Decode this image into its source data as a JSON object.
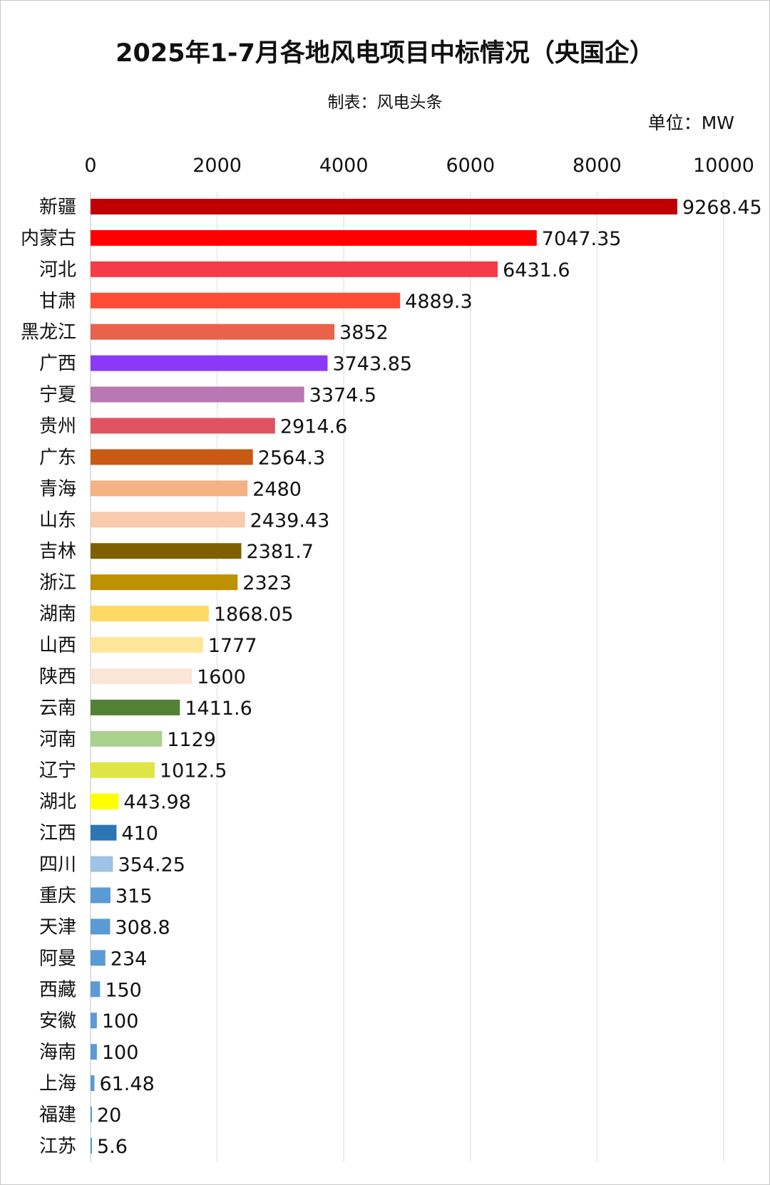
{
  "chart_data": {
    "type": "bar",
    "orientation": "horizontal",
    "title": "2025年1-7月各地风电项目中标情况（央国企）",
    "subtitle": "制表：风电头条",
    "unit": "单位：MW",
    "xlim": [
      0,
      10000
    ],
    "xticks": [
      "0",
      "2000",
      "4000",
      "6000",
      "8000",
      "10000"
    ],
    "xtick_values": [
      0,
      2000,
      4000,
      6000,
      8000,
      10000
    ],
    "xaxis_position": "top",
    "grid": true,
    "categories": [
      "新疆",
      "内蒙古",
      "河北",
      "甘肃",
      "黑龙江",
      "广西",
      "宁夏",
      "贵州",
      "广东",
      "青海",
      "山东",
      "吉林",
      "浙江",
      "湖南",
      "山西",
      "陕西",
      "云南",
      "河南",
      "辽宁",
      "湖北",
      "江西",
      "四川",
      "重庆",
      "天津",
      "阿曼",
      "西藏",
      "安徽",
      "海南",
      "上海",
      "福建",
      "江苏"
    ],
    "values": [
      9268.45,
      7047.35,
      6431.6,
      4889.3,
      3852,
      3743.85,
      3374.5,
      2914.6,
      2564.3,
      2480,
      2439.43,
      2381.7,
      2323,
      1868.05,
      1777,
      1600,
      1411.6,
      1129,
      1012.5,
      443.98,
      410,
      354.25,
      315,
      308.8,
      234,
      150,
      100,
      100,
      61.48,
      20,
      5.6
    ],
    "labels": [
      "9268.45",
      "7047.35",
      "6431.6",
      "4889.3",
      "3852",
      "3743.85",
      "3374.5",
      "2914.6",
      "2564.3",
      "2480",
      "2439.43",
      "2381.7",
      "2323",
      "1868.05",
      "1777",
      "1600",
      "1411.6",
      "1129",
      "1012.5",
      "443.98",
      "410",
      "354.25",
      "315",
      "308.8",
      "234",
      "150",
      "100",
      "100",
      "61.48",
      "20",
      "5.6"
    ],
    "colors": [
      "#c00000",
      "#ff0000",
      "#f73a48",
      "#ff4c35",
      "#ea6249",
      "#8a3af6",
      "#b977b3",
      "#df5461",
      "#c85a12",
      "#f5b183",
      "#f8cbad",
      "#7f6000",
      "#bf9000",
      "#ffd966",
      "#ffe699",
      "#fbe5d6",
      "#548235",
      "#a9d18e",
      "#dee544",
      "#ffff00",
      "#2e75b6",
      "#9dc3e6",
      "#5b9bd5",
      "#5b9bd5",
      "#5b9bd5",
      "#5b9bd5",
      "#5b9bd5",
      "#5b9bd5",
      "#5b9bd5",
      "#5b9bd5",
      "#5b9bd5"
    ]
  }
}
